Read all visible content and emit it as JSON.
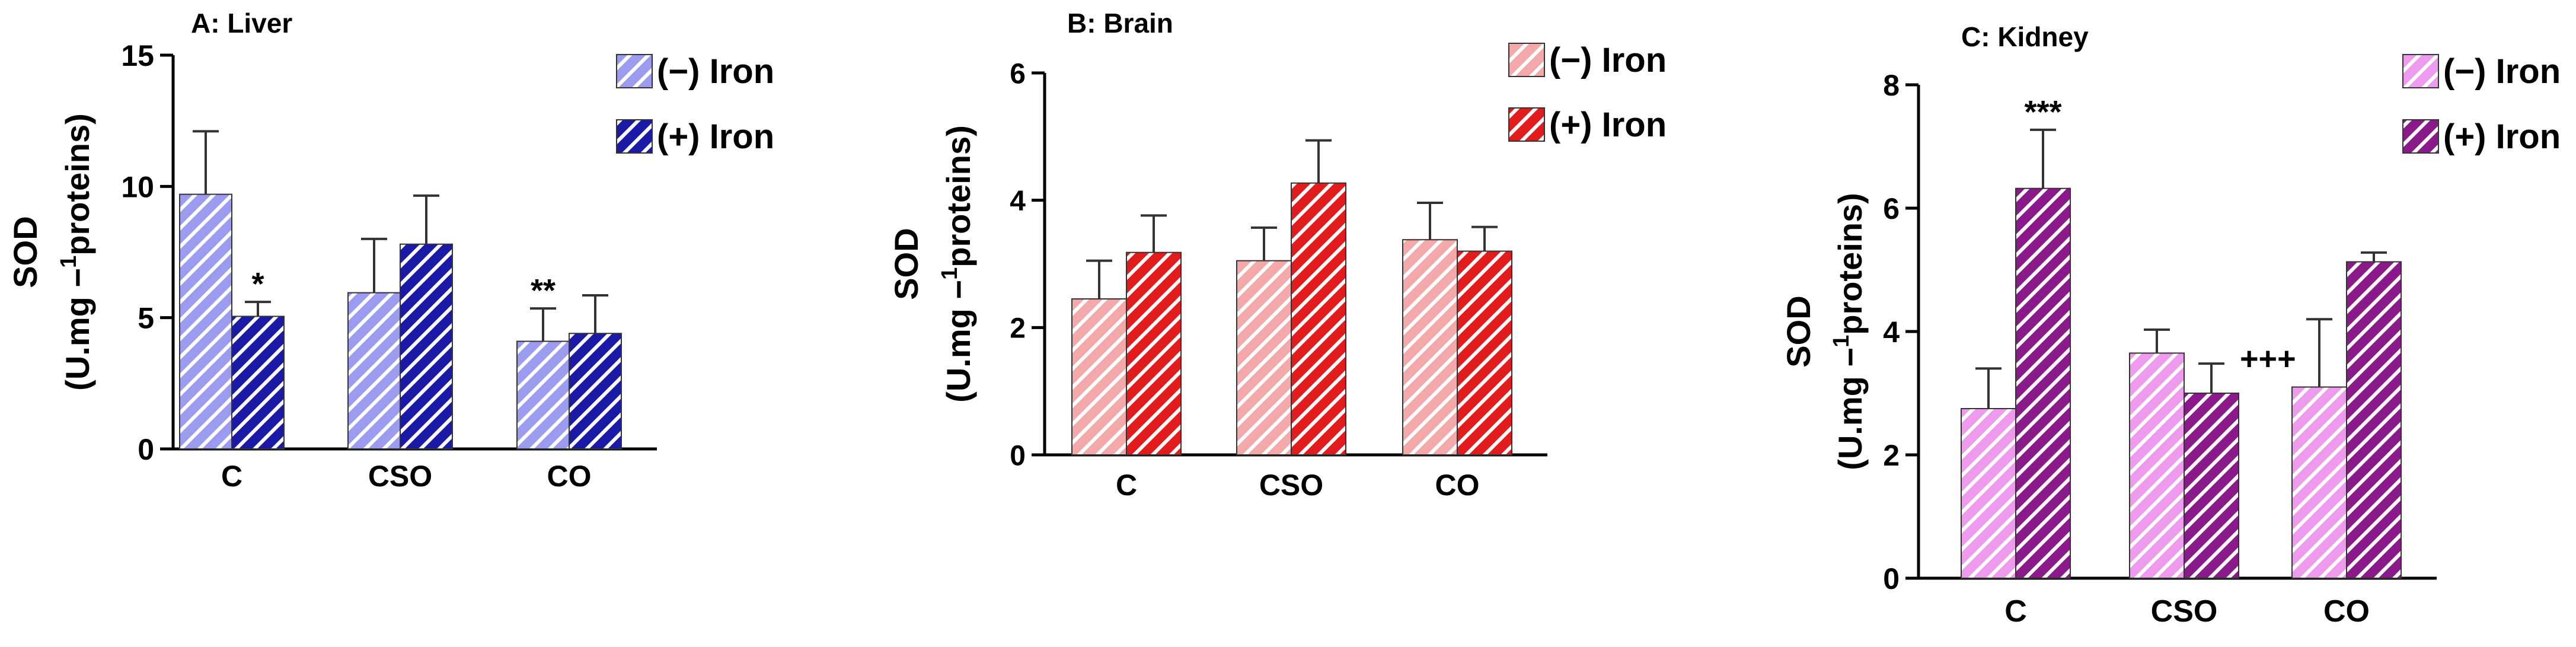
{
  "chart_data": [
    {
      "type": "bar",
      "title": "A: Liver",
      "ylabel_line1": "SOD",
      "ylabel_line2": "(U.mg −1proteins)",
      "ylabel_prefix": "(U.mg −",
      "ylabel_sup": "1",
      "ylabel_suffix": "proteins)",
      "ylim": [
        0,
        15
      ],
      "yticks": [
        0,
        5,
        10,
        15
      ],
      "categories": [
        "C",
        "CSO",
        "CO"
      ],
      "series": [
        {
          "name": "(−) Iron",
          "values": [
            9.7,
            5.95,
            4.1
          ],
          "errors": [
            2.4,
            2.05,
            1.25
          ]
        },
        {
          "name": "(+) Iron",
          "values": [
            5.05,
            7.8,
            4.4
          ],
          "errors": [
            0.55,
            1.85,
            1.45
          ]
        }
      ],
      "annotations": [
        {
          "series": 1,
          "category": 0,
          "text": "*"
        },
        {
          "series": 0,
          "category": 2,
          "text": "**"
        }
      ],
      "colors": {
        "light": "#9b9cf0",
        "dark": "#1a1aa6"
      }
    },
    {
      "type": "bar",
      "title": "B: Brain",
      "ylabel_line1": "SOD",
      "ylabel_line2": "(U.mg −1proteins)",
      "ylabel_prefix": "(U.mg −",
      "ylabel_sup": "1",
      "ylabel_suffix": "proteins)",
      "ylim": [
        0,
        6
      ],
      "yticks": [
        0,
        2,
        4,
        6
      ],
      "categories": [
        "C",
        "CSO",
        "CO"
      ],
      "series": [
        {
          "name": "(−) Iron",
          "values": [
            2.45,
            3.05,
            3.38
          ],
          "errors": [
            0.6,
            0.52,
            0.58
          ]
        },
        {
          "name": "(+) Iron",
          "values": [
            3.18,
            4.27,
            3.2
          ],
          "errors": [
            0.58,
            0.67,
            0.38
          ]
        }
      ],
      "annotations": [],
      "colors": {
        "light": "#f3a9a9",
        "dark": "#e21c1c"
      }
    },
    {
      "type": "bar",
      "title": "C: Kidney",
      "ylabel_line1": "SOD",
      "ylabel_line2": "(U.mg −1proteins)",
      "ylabel_prefix": "(U.mg −",
      "ylabel_sup": "1",
      "ylabel_suffix": "proteins)",
      "ylim": [
        0,
        8
      ],
      "yticks": [
        0,
        2,
        4,
        6,
        8
      ],
      "categories": [
        "C",
        "CSO",
        "CO"
      ],
      "series": [
        {
          "name": "(−) Iron",
          "values": [
            2.75,
            3.65,
            3.1
          ],
          "errors": [
            0.65,
            0.38,
            1.1
          ]
        },
        {
          "name": "(+) Iron",
          "values": [
            6.32,
            3.0,
            5.13
          ],
          "errors": [
            0.95,
            0.48,
            0.15
          ]
        }
      ],
      "annotations": [
        {
          "series": 1,
          "category": 0,
          "text": "***"
        },
        {
          "series": 1,
          "category": 1,
          "text": "+++"
        }
      ],
      "colors": {
        "light": "#ee9bee",
        "dark": "#8a1a8a"
      }
    }
  ]
}
